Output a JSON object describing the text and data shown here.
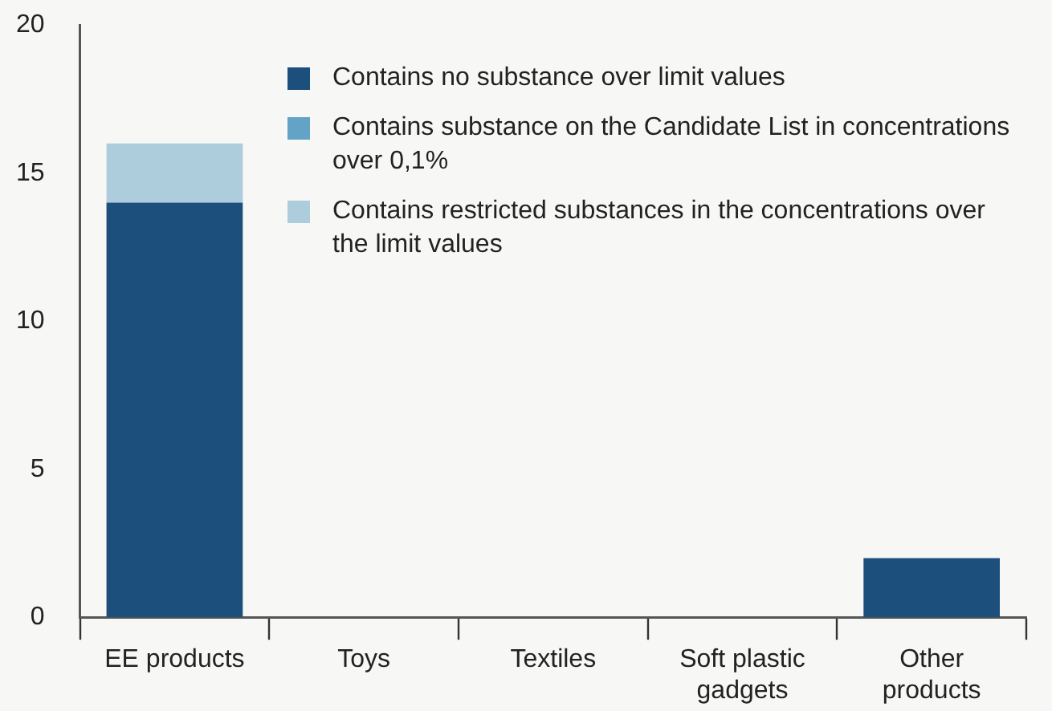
{
  "chart_data": {
    "type": "bar",
    "stacked": true,
    "categories": [
      "EE products",
      "Toys",
      "Textiles",
      "Soft plastic gadgets",
      "Other products"
    ],
    "series": [
      {
        "name": "Contains no substance over limit values",
        "color": "#1c4f7c",
        "values": [
          14,
          0,
          0,
          0,
          2
        ]
      },
      {
        "name": "Contains substance on the Candidate List in concentrations over 0,1%",
        "color": "#62a3c6",
        "values": [
          0,
          0,
          0,
          0,
          0
        ]
      },
      {
        "name": "Contains restricted substances in the concentrations over the limit values",
        "color": "#adcddd",
        "values": [
          2,
          0,
          0,
          0,
          0
        ]
      }
    ],
    "ylim": [
      0,
      20
    ],
    "yticks": [
      0,
      5,
      10,
      15,
      20
    ],
    "grid": false,
    "legend": "top right"
  }
}
